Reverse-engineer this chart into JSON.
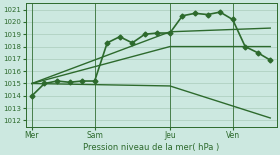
{
  "bg_color": "#cce8e0",
  "grid_color": "#aaccbc",
  "line_color": "#2d6a2d",
  "xlabel": "Pression niveau de la mer( hPa )",
  "ylim": [
    1011.5,
    1021.5
  ],
  "yticks": [
    1012,
    1013,
    1014,
    1015,
    1016,
    1017,
    1018,
    1019,
    1020,
    1021
  ],
  "xtick_labels": [
    "Mer",
    "Sam",
    "Jeu",
    "Ven"
  ],
  "xtick_pos": [
    0,
    5,
    11,
    16
  ],
  "vline_pos": [
    0,
    5,
    11,
    16
  ],
  "xlim": [
    -0.5,
    19.5
  ],
  "main_line": {
    "x": [
      0,
      1,
      2,
      3,
      4,
      5,
      6,
      7,
      8,
      9,
      10,
      11,
      12,
      13,
      14,
      15,
      16,
      17,
      18,
      19
    ],
    "y": [
      1014.0,
      1015.0,
      1015.2,
      1015.1,
      1015.2,
      1015.2,
      1018.3,
      1018.8,
      1018.3,
      1019.0,
      1019.1,
      1019.1,
      1020.5,
      1020.7,
      1020.6,
      1020.8,
      1020.2,
      1018.0,
      1017.5,
      1016.9
    ]
  },
  "fan_lines": [
    {
      "x": [
        0,
        11,
        19
      ],
      "y": [
        1015.0,
        1019.2,
        1019.5
      ]
    },
    {
      "x": [
        0,
        11,
        19
      ],
      "y": [
        1015.0,
        1018.0,
        1018.0
      ]
    },
    {
      "x": [
        0,
        11,
        19
      ],
      "y": [
        1015.0,
        1014.8,
        1012.2
      ]
    }
  ],
  "extra_markers": {
    "x": [
      0,
      1,
      2,
      3,
      4,
      5,
      6,
      7,
      8
    ],
    "y": [
      1013.2,
      1014.0,
      1015.0,
      1015.2,
      1015.1,
      1015.2,
      1018.3,
      1018.8,
      1018.3
    ]
  },
  "right_markers": {
    "x": [
      12,
      13,
      14,
      15,
      16,
      17,
      18,
      19
    ],
    "y": [
      1020.5,
      1020.7,
      1020.6,
      1020.8,
      1020.2,
      1018.0,
      1017.5,
      1016.9
    ]
  }
}
